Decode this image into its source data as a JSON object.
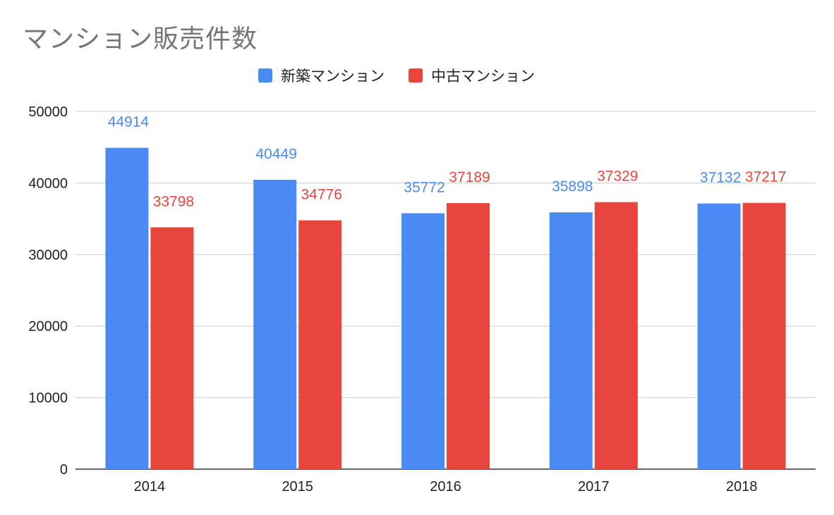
{
  "chart_data": {
    "type": "bar",
    "title": "マンション販売件数",
    "categories": [
      "2014",
      "2015",
      "2016",
      "2017",
      "2018"
    ],
    "series": [
      {
        "name": "新築マンション",
        "color": "#4a8af4",
        "label_color": "#4a8af4",
        "values": [
          44914,
          40449,
          35772,
          35898,
          37132
        ]
      },
      {
        "name": "中古マンション",
        "color": "#e8453c",
        "label_color": "#e8453c",
        "values": [
          33798,
          34776,
          37189,
          37329,
          37217
        ]
      }
    ],
    "ylim": [
      0,
      50000
    ],
    "yticks": [
      "0",
      "10000",
      "20000",
      "30000",
      "40000",
      "50000"
    ],
    "grid": true,
    "legend_position": "top-center",
    "xlabel": "",
    "ylabel": ""
  }
}
